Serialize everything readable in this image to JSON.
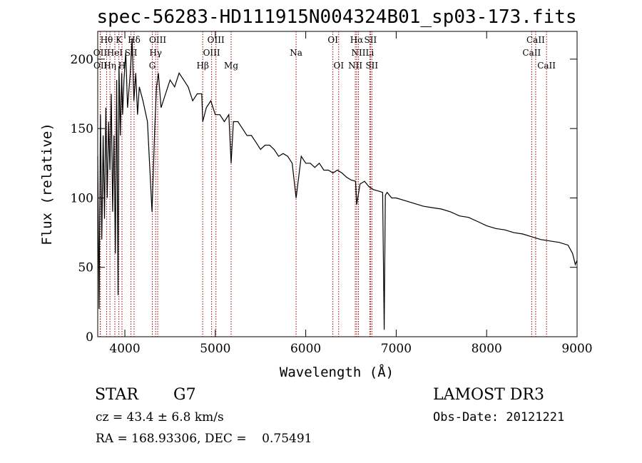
{
  "chart_data": {
    "type": "line",
    "title": "spec-56283-HD111915N004324B01_sp03-173.fits",
    "xlabel": "Wavelength (Å)",
    "ylabel": "Flux (relative)",
    "xlim": [
      3700,
      9000
    ],
    "ylim": [
      0,
      2200
    ],
    "xticks": [
      4000,
      5000,
      6000,
      7000,
      8000,
      9000
    ],
    "yticks": [
      0,
      50,
      100,
      150,
      200
    ],
    "y_tick_scale": 0.1,
    "series": [
      {
        "name": "flux",
        "x": [
          3700,
          3715,
          3730,
          3745,
          3760,
          3775,
          3790,
          3805,
          3820,
          3835,
          3850,
          3865,
          3880,
          3895,
          3910,
          3925,
          3935,
          3950,
          3965,
          3975,
          3990,
          4010,
          4030,
          4060,
          4080,
          4100,
          4120,
          4140,
          4160,
          4200,
          4250,
          4300,
          4330,
          4350,
          4370,
          4400,
          4450,
          4500,
          4550,
          4600,
          4650,
          4700,
          4750,
          4800,
          4850,
          4861,
          4900,
          4950,
          5000,
          5050,
          5100,
          5150,
          5175,
          5200,
          5250,
          5300,
          5350,
          5400,
          5450,
          5500,
          5550,
          5600,
          5650,
          5700,
          5750,
          5800,
          5850,
          5893,
          5950,
          6000,
          6050,
          6100,
          6150,
          6200,
          6250,
          6300,
          6350,
          6400,
          6450,
          6500,
          6550,
          6563,
          6600,
          6650,
          6700,
          6750,
          6800,
          6850,
          6867,
          6880,
          6900,
          6950,
          7000,
          7100,
          7200,
          7300,
          7400,
          7500,
          7600,
          7700,
          7800,
          7900,
          8000,
          8100,
          8200,
          8300,
          8400,
          8500,
          8600,
          8700,
          8800,
          8900,
          8950,
          8980,
          9000
        ],
        "y": [
          1300,
          200,
          1600,
          700,
          1450,
          850,
          1650,
          1000,
          1550,
          1200,
          1750,
          900,
          1450,
          600,
          1850,
          300,
          1950,
          1450,
          1900,
          1600,
          1850,
          2050,
          1650,
          1900,
          2150,
          1700,
          1900,
          1600,
          1800,
          1700,
          1550,
          900,
          1500,
          1800,
          1900,
          1650,
          1750,
          1850,
          1800,
          1900,
          1850,
          1800,
          1700,
          1750,
          1750,
          1550,
          1650,
          1700,
          1600,
          1600,
          1550,
          1600,
          1250,
          1550,
          1550,
          1500,
          1450,
          1450,
          1400,
          1350,
          1380,
          1380,
          1350,
          1300,
          1320,
          1300,
          1250,
          1000,
          1300,
          1250,
          1250,
          1220,
          1250,
          1200,
          1200,
          1180,
          1200,
          1180,
          1150,
          1130,
          1120,
          950,
          1100,
          1120,
          1080,
          1060,
          1050,
          1040,
          50,
          1020,
          1040,
          1000,
          1000,
          980,
          960,
          940,
          930,
          920,
          900,
          870,
          860,
          830,
          800,
          780,
          770,
          750,
          740,
          720,
          700,
          690,
          680,
          660,
          600,
          520,
          550
        ]
      }
    ],
    "lines": [
      {
        "name": "Hθ",
        "x": 3798,
        "row": 0
      },
      {
        "name": "OII",
        "x": 3727,
        "row": 1
      },
      {
        "name": "OII",
        "x": 3729,
        "row": 2
      },
      {
        "name": "Hη",
        "x": 3835,
        "row": 2
      },
      {
        "name": "HeI",
        "x": 3889,
        "row": 1
      },
      {
        "name": "K",
        "x": 3934,
        "row": 0
      },
      {
        "name": "SII",
        "x": 4068,
        "row": 1
      },
      {
        "name": "H",
        "x": 3968,
        "row": 2
      },
      {
        "name": "Hδ",
        "x": 4102,
        "row": 0
      },
      {
        "name": "OIII",
        "x": 4363,
        "row": 0
      },
      {
        "name": "Hγ",
        "x": 4340,
        "row": 1
      },
      {
        "name": "G",
        "x": 4304,
        "row": 2
      },
      {
        "name": "Hβ",
        "x": 4861,
        "row": 2
      },
      {
        "name": "OIII",
        "x": 5007,
        "row": 0
      },
      {
        "name": "OIII",
        "x": 4959,
        "row": 1
      },
      {
        "name": "Mg",
        "x": 5175,
        "row": 2
      },
      {
        "name": "Na",
        "x": 5893,
        "row": 1
      },
      {
        "name": "OI",
        "x": 6300,
        "row": 0
      },
      {
        "name": "OI",
        "x": 6364,
        "row": 2
      },
      {
        "name": "Hα",
        "x": 6563,
        "row": 0
      },
      {
        "name": "NII",
        "x": 6583,
        "row": 1
      },
      {
        "name": "NII",
        "x": 6548,
        "row": 2
      },
      {
        "name": "SII",
        "x": 6716,
        "row": 0
      },
      {
        "name": "Li",
        "x": 6708,
        "row": 1
      },
      {
        "name": "SII",
        "x": 6731,
        "row": 2
      },
      {
        "name": "CaII",
        "x": 8542,
        "row": 0
      },
      {
        "name": "CaII",
        "x": 8498,
        "row": 1
      },
      {
        "name": "CaII",
        "x": 8662,
        "row": 2
      }
    ]
  },
  "info": {
    "object_class": "STAR",
    "subclass": "G7",
    "survey": "LAMOST DR3",
    "cz": "cz = 43.4 ± 6.8 km/s",
    "obs_date": "Obs-Date: 20121221",
    "coords": "RA = 168.93306, DEC =    0.75491"
  }
}
